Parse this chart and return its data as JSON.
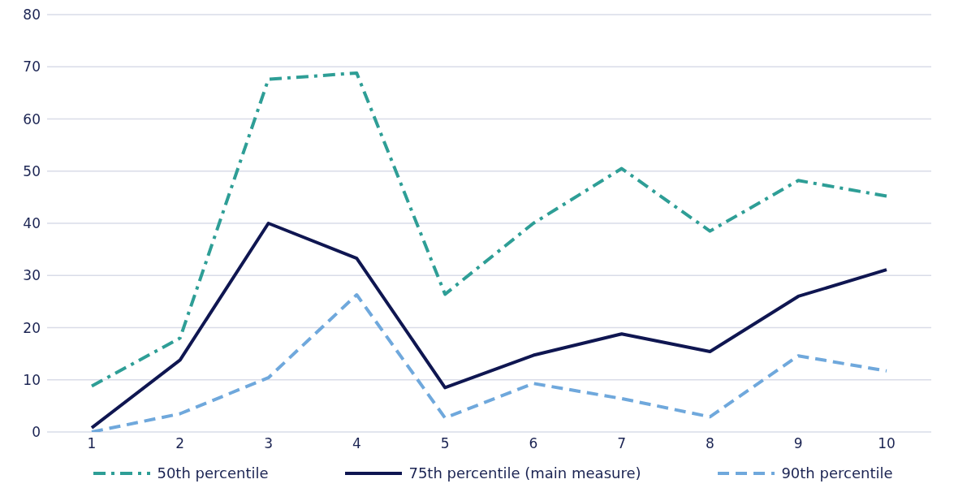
{
  "chart_data": {
    "type": "line",
    "categories": [
      "1",
      "2",
      "3",
      "4",
      "5",
      "6",
      "7",
      "8",
      "9",
      "10"
    ],
    "series": [
      {
        "name": "50th percentile",
        "color": "#2e9e96",
        "line_style": "dashdot",
        "values": [
          8.8,
          18,
          67.6,
          68.8,
          26.4,
          40,
          50.5,
          38.5,
          48.2,
          45.2
        ]
      },
      {
        "name": "75th percentile (main measure)",
        "color": "#0f1651",
        "line_style": "solid",
        "values": [
          0.8,
          13.8,
          40,
          33.3,
          8.5,
          14.7,
          18.8,
          15.4,
          26,
          31.1
        ]
      },
      {
        "name": "90th percentile",
        "color": "#6fa8dc",
        "line_style": "dashed",
        "values": [
          0,
          3.5,
          10.4,
          26.3,
          2.7,
          9.3,
          6.4,
          2.9,
          14.6,
          11.7
        ]
      }
    ],
    "ylim": [
      0,
      80
    ],
    "yticks": [
      0,
      10,
      20,
      30,
      40,
      50,
      60,
      70,
      80
    ],
    "grid": "y",
    "legend": "bottom",
    "marker": "none"
  }
}
